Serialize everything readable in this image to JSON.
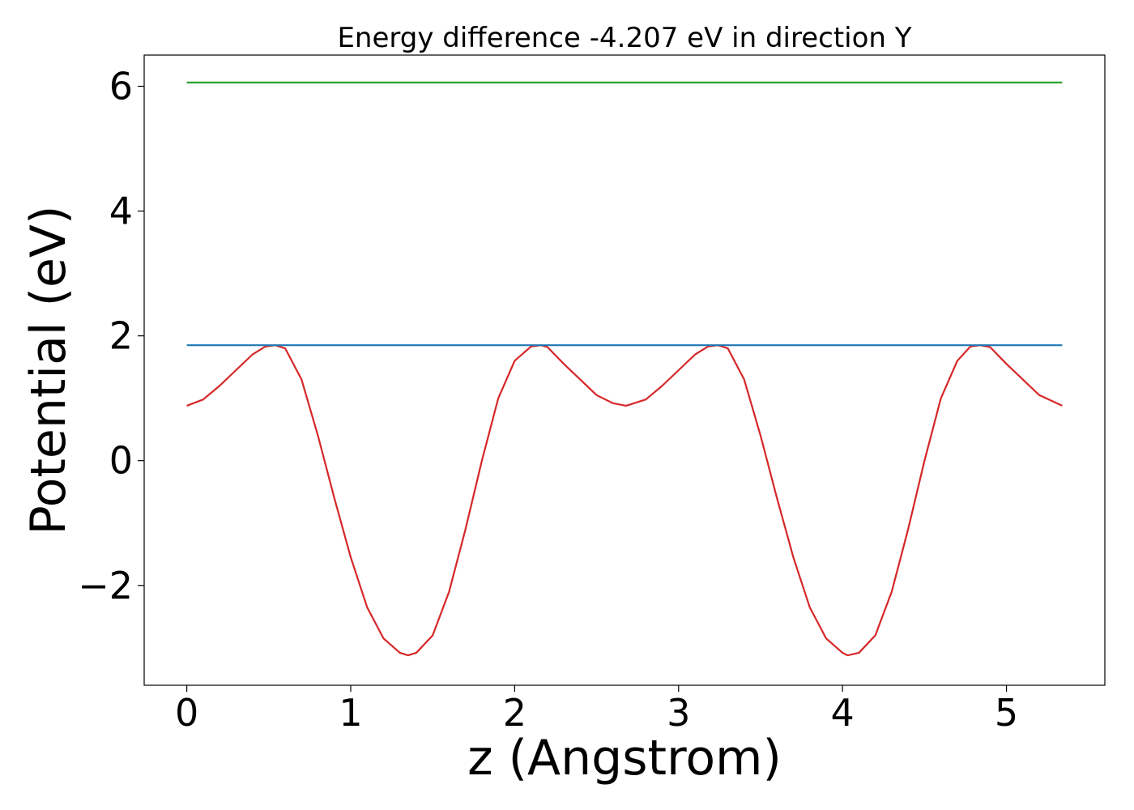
{
  "chart_data": {
    "type": "line",
    "title": "Energy difference -4.207 eV in direction Y",
    "xlabel": "z (Angstrom)",
    "ylabel": "Potential (eV)",
    "xlim": [
      -0.26,
      5.6
    ],
    "ylim": [
      -3.6,
      6.5
    ],
    "xticks": [
      0,
      1,
      2,
      3,
      4,
      5
    ],
    "yticks": [
      -2,
      0,
      2,
      4,
      6
    ],
    "ytick_labels": [
      "−2",
      "0",
      "2",
      "4",
      "6"
    ],
    "grid": false,
    "series": [
      {
        "color": "#d62728",
        "x": [
          0.0,
          0.1,
          0.2,
          0.3,
          0.4,
          0.48,
          0.54,
          0.6,
          0.7,
          0.8,
          0.9,
          1.0,
          1.1,
          1.2,
          1.3,
          1.35,
          1.4,
          1.5,
          1.6,
          1.7,
          1.8,
          1.9,
          2.0,
          2.1,
          2.16,
          2.2,
          2.3,
          2.4,
          2.5,
          2.6,
          2.68,
          2.8,
          2.9,
          3.0,
          3.1,
          3.18,
          3.24,
          3.3,
          3.4,
          3.5,
          3.6,
          3.7,
          3.8,
          3.9,
          4.0,
          4.03,
          4.1,
          4.2,
          4.3,
          4.4,
          4.5,
          4.6,
          4.7,
          4.78,
          4.84,
          4.9,
          5.0,
          5.1,
          5.2,
          5.34
        ],
        "y": [
          0.88,
          0.98,
          1.2,
          1.45,
          1.7,
          1.83,
          1.85,
          1.8,
          1.3,
          0.4,
          -0.6,
          -1.55,
          -2.35,
          -2.85,
          -3.08,
          -3.12,
          -3.08,
          -2.8,
          -2.1,
          -1.1,
          0.0,
          1.0,
          1.6,
          1.83,
          1.85,
          1.82,
          1.55,
          1.3,
          1.05,
          0.92,
          0.88,
          0.98,
          1.2,
          1.45,
          1.7,
          1.83,
          1.85,
          1.8,
          1.3,
          0.4,
          -0.6,
          -1.55,
          -2.35,
          -2.85,
          -3.08,
          -3.12,
          -3.08,
          -2.8,
          -2.1,
          -1.1,
          0.0,
          1.0,
          1.6,
          1.83,
          1.85,
          1.82,
          1.55,
          1.3,
          1.05,
          0.88
        ]
      },
      {
        "color": "#1f77b4",
        "x": [
          0.0,
          5.34
        ],
        "y": [
          1.85,
          1.85
        ]
      },
      {
        "color": "#2ca02c",
        "x": [
          0.0,
          5.34
        ],
        "y": [
          6.06,
          6.06
        ]
      }
    ]
  }
}
